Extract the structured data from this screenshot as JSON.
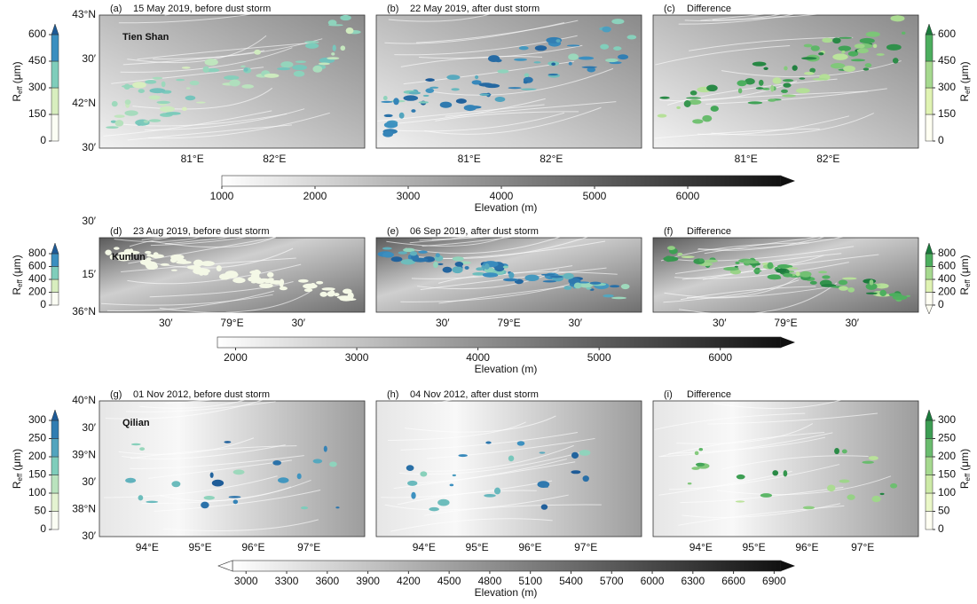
{
  "reff_label": {
    "symbol": "R",
    "subscript": "eff",
    "unit": "(μm)"
  },
  "rows": [
    {
      "panels": [
        {
          "label": "(a)",
          "title": "15 May 2019, before dust storm"
        },
        {
          "label": "(b)",
          "title": "22 May 2019, after dust storm"
        },
        {
          "label": "(c)",
          "title": "Difference"
        }
      ],
      "region": "Tien Shan",
      "lat_labels": [
        "43°N",
        "30′",
        "42°N",
        "30′"
      ],
      "lon_labels": [
        "81°E",
        "82°E"
      ],
      "left_colorbar": {
        "ticks": [
          0,
          150,
          300,
          450,
          600
        ]
      },
      "right_colorbar": {
        "ticks": [
          0,
          150,
          300,
          450,
          600
        ]
      },
      "elevation": {
        "range": [
          1000,
          7000
        ],
        "ticks": [
          1000,
          2000,
          3000,
          4000,
          5000,
          6000
        ],
        "label": "Elevation (m)"
      }
    },
    {
      "panels": [
        {
          "label": "(d)",
          "title": "23 Aug 2019, before dust storm"
        },
        {
          "label": "(e)",
          "title": "06 Sep 2019, after dust storm"
        },
        {
          "label": "(f)",
          "title": "Difference"
        }
      ],
      "region": "Kunlun",
      "lat_labels": [
        "30′",
        "15′",
        "36°N"
      ],
      "lon_labels": [
        "30′",
        "79°E",
        "30′"
      ],
      "left_colorbar": {
        "ticks": [
          0,
          200,
          400,
          600,
          800
        ]
      },
      "right_colorbar": {
        "ticks": [
          0,
          200,
          400,
          600,
          800
        ]
      },
      "elevation": {
        "range": [
          1850,
          6500
        ],
        "ticks": [
          2000,
          3000,
          4000,
          5000,
          6000
        ],
        "label": "Elevation (m)"
      }
    },
    {
      "panels": [
        {
          "label": "(g)",
          "title": "01 Nov 2012, before dust storm"
        },
        {
          "label": "(h)",
          "title": "04 Nov 2012, after dust storm"
        },
        {
          "label": "(i)",
          "title": "Difference"
        }
      ],
      "region": "Qilian",
      "lat_labels": [
        "40°N",
        "30′",
        "39°N",
        "30′",
        "38°N",
        "30′"
      ],
      "lon_labels": [
        "94°E",
        "95°E",
        "96°E",
        "97°E"
      ],
      "left_colorbar": {
        "ticks": [
          0,
          50,
          100,
          150,
          200,
          250,
          300
        ]
      },
      "right_colorbar": {
        "ticks": [
          0,
          50,
          100,
          150,
          200,
          250,
          300
        ]
      },
      "elevation": {
        "range": [
          2900,
          6950
        ],
        "ticks": [
          3000,
          3300,
          3600,
          3900,
          4200,
          4500,
          4800,
          5100,
          5400,
          5700,
          6000,
          6300,
          6600,
          6900
        ],
        "label": "Elevation (m)"
      }
    }
  ]
}
